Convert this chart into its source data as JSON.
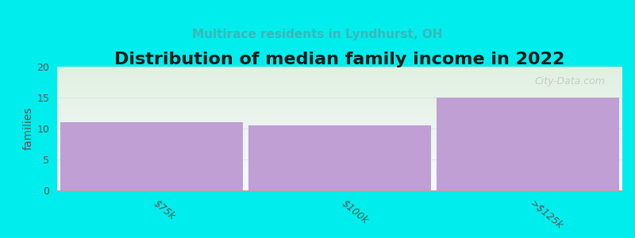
{
  "title": "Distribution of median family income in 2022",
  "subtitle": "Multirace residents in Lyndhurst, OH",
  "categories": [
    "$75k",
    "$100k",
    ">$125k"
  ],
  "values": [
    11,
    10.5,
    15
  ],
  "bar_color": "#bf9fd4",
  "background_color": "#00eded",
  "plot_bg_top": "#e8f5e5",
  "plot_bg_bottom": "#f5f5ff",
  "ylabel": "families",
  "ylim": [
    0,
    20
  ],
  "yticks": [
    0,
    5,
    10,
    15,
    20
  ],
  "title_fontsize": 16,
  "subtitle_fontsize": 11,
  "subtitle_color": "#3ab8b8",
  "ylabel_color": "#555555",
  "watermark": "City-Data.com",
  "title_color": "#1a1a1a"
}
